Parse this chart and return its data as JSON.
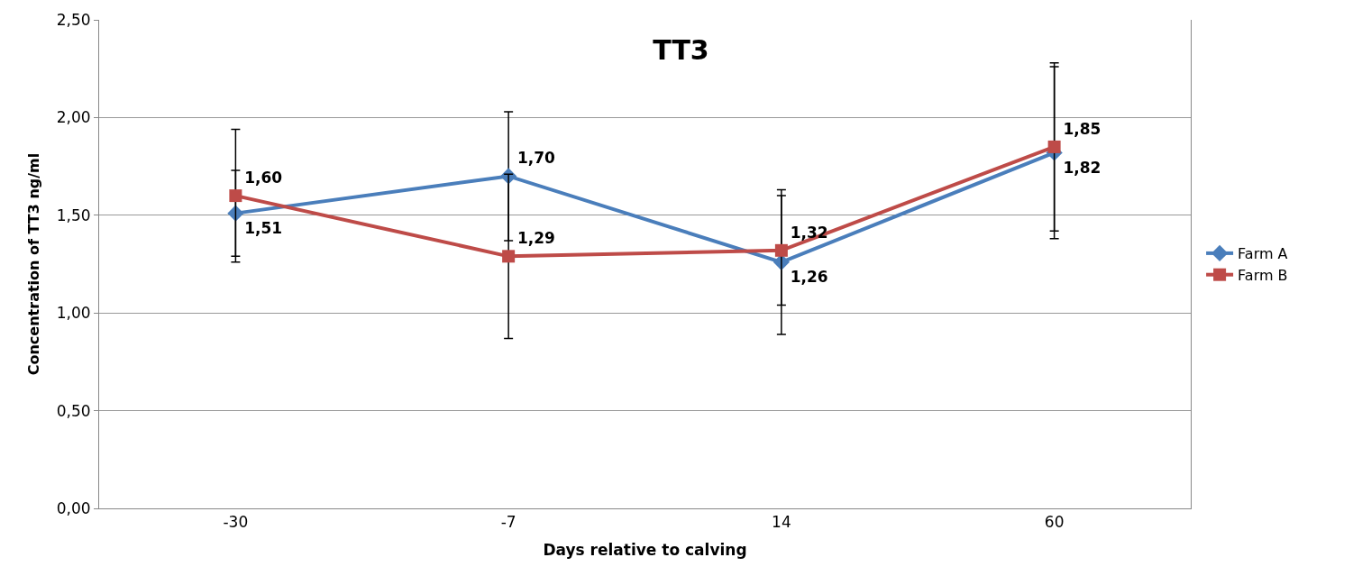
{
  "chart_data": {
    "type": "line",
    "title": "TT3",
    "xlabel": "Days relative to calving",
    "ylabel": "Concentration of TT3 ng/ml",
    "categories": [
      "-30",
      "-7",
      "14",
      "60"
    ],
    "series": [
      {
        "name": "Farm A",
        "color": "#4a7ebb",
        "marker": "diamond",
        "values": [
          1.51,
          1.7,
          1.26,
          1.82
        ],
        "value_labels": [
          "1,51",
          "1,70",
          "1,26",
          "1,82"
        ],
        "errors": [
          0.22,
          0.33,
          0.37,
          0.44
        ]
      },
      {
        "name": "Farm B",
        "color": "#be4b48",
        "marker": "square",
        "values": [
          1.6,
          1.29,
          1.32,
          1.85
        ],
        "value_labels": [
          "1,60",
          "1,29",
          "1,32",
          "1,85"
        ],
        "errors": [
          0.34,
          0.42,
          0.28,
          0.43
        ]
      }
    ],
    "ylim": [
      0,
      2.5
    ],
    "yticks": [
      {
        "value": 0,
        "label": "0,00"
      },
      {
        "value": 0.5,
        "label": "0,50"
      },
      {
        "value": 1,
        "label": "1,00"
      },
      {
        "value": 1.5,
        "label": "1,50"
      },
      {
        "value": 2,
        "label": "2,00"
      },
      {
        "value": 2.5,
        "label": "2,50"
      }
    ],
    "grid": "y",
    "legend": "right",
    "line_style": "solid"
  }
}
